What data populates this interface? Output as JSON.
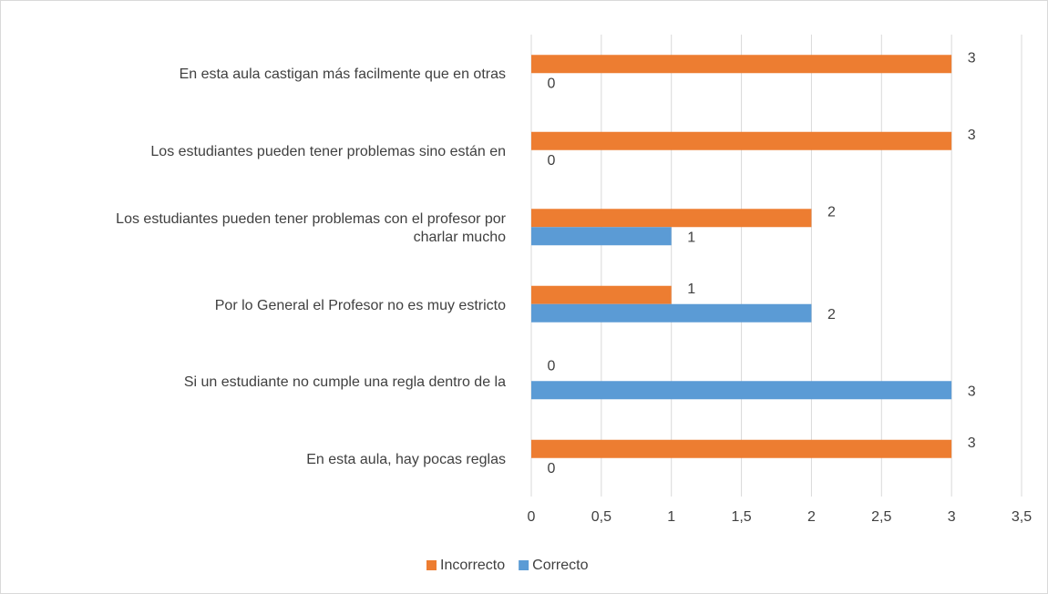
{
  "chart_data": {
    "type": "bar",
    "orientation": "horizontal",
    "categories": [
      "En esta aula castigan más facilmente que en otras",
      "Los estudiantes pueden tener problemas sino están en",
      "Los estudiantes pueden tener problemas con el profesor por charlar mucho",
      "Por lo General el Profesor no es muy estricto",
      "Si un estudiante no cumple una regla dentro de la",
      "En esta aula, hay pocas reglas"
    ],
    "series": [
      {
        "name": "Incorrecto",
        "color": "#ed7d31",
        "values": [
          3,
          3,
          2,
          1,
          0,
          3
        ]
      },
      {
        "name": "Correcto",
        "color": "#5b9bd5",
        "values": [
          0,
          0,
          1,
          2,
          3,
          0
        ]
      }
    ],
    "xlim": [
      0,
      3.5
    ],
    "xticks": [
      0,
      {
        "value": 0.5,
        "label": "0,5"
      },
      1,
      {
        "value": 1.5,
        "label": "1,5"
      },
      2,
      {
        "value": 2.5,
        "label": "2,5"
      },
      3,
      {
        "value": 3.5,
        "label": "3,5"
      }
    ],
    "grid": true,
    "legend": "bottom"
  }
}
